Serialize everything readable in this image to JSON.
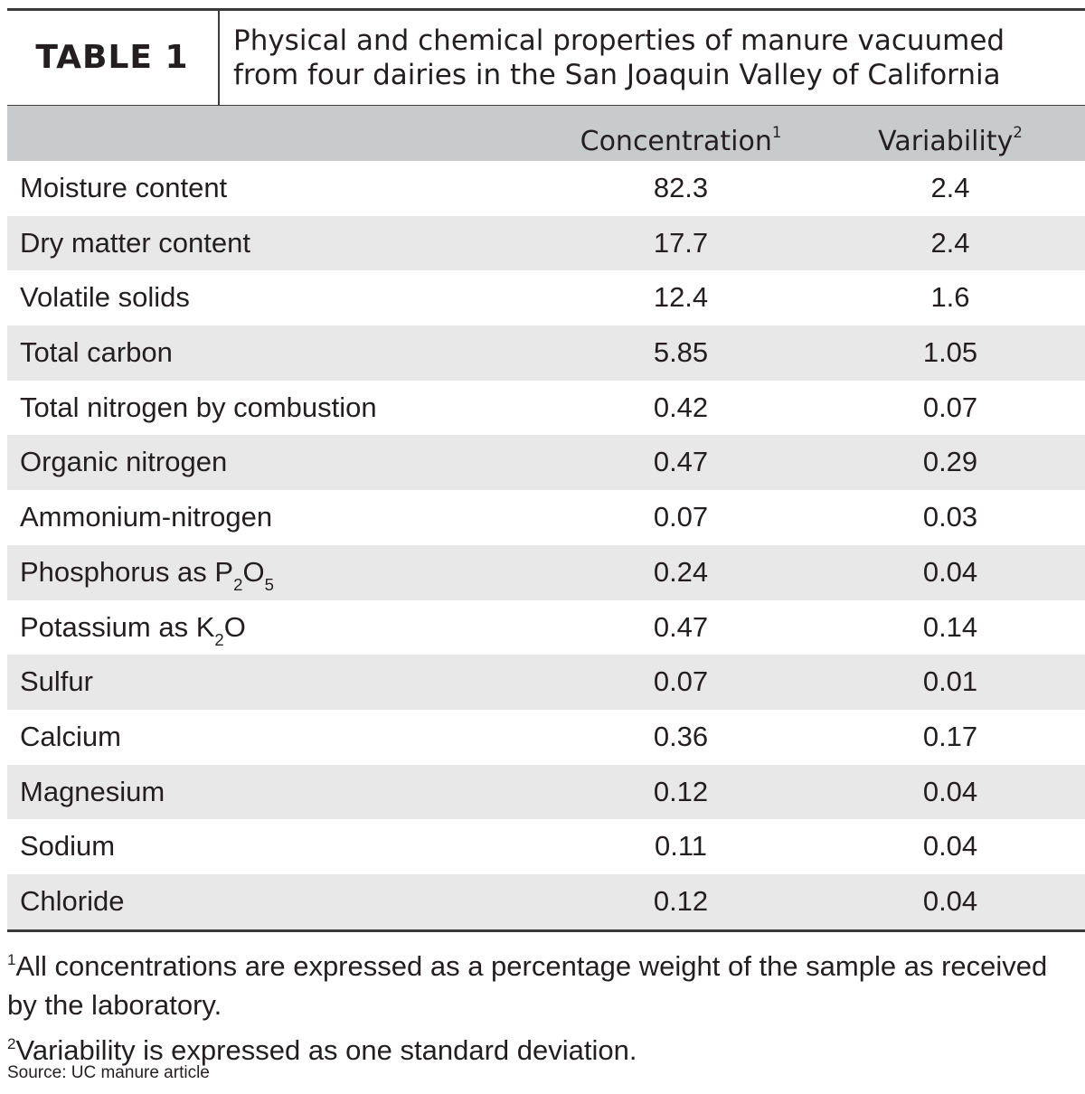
{
  "header": {
    "label": "TABLE 1",
    "title_lines": [
      "Physical and chemical properties of manure vacuumed",
      "from four dairies in the San Joaquin Valley of California"
    ]
  },
  "table": {
    "columns": [
      {
        "text": "Concentration",
        "sup": "1"
      },
      {
        "text": "Variability",
        "sup": "2"
      }
    ],
    "rows": [
      {
        "label": "Moisture content",
        "values": [
          82.3,
          2.4
        ]
      },
      {
        "label": "Dry matter content",
        "values": [
          17.7,
          2.4
        ]
      },
      {
        "label": "Volatile solids",
        "values": [
          12.4,
          1.6
        ]
      },
      {
        "label": "Total carbon",
        "values": [
          5.85,
          1.05
        ]
      },
      {
        "label": "Total nitrogen by combustion",
        "values": [
          0.42,
          0.07
        ]
      },
      {
        "label": "Organic nitrogen",
        "values": [
          0.47,
          0.29
        ]
      },
      {
        "label": "Ammonium-nitrogen",
        "values": [
          0.07,
          0.03
        ]
      },
      {
        "label": [
          {
            "t": "Phosphorus as P"
          },
          {
            "sub": "2"
          },
          {
            "t": "O"
          },
          {
            "sub": "5"
          }
        ],
        "values": [
          0.24,
          0.04
        ]
      },
      {
        "label": [
          {
            "t": "Potassium as K"
          },
          {
            "sub": "2"
          },
          {
            "t": "O"
          }
        ],
        "values": [
          0.47,
          0.14
        ]
      },
      {
        "label": "Sulfur",
        "values": [
          0.07,
          0.01
        ]
      },
      {
        "label": "Calcium",
        "values": [
          0.36,
          0.17
        ]
      },
      {
        "label": "Magnesium",
        "values": [
          0.12,
          0.04
        ]
      },
      {
        "label": "Sodium",
        "values": [
          0.11,
          0.04
        ]
      },
      {
        "label": "Chloride",
        "values": [
          0.12,
          0.04
        ]
      }
    ]
  },
  "footnotes": [
    {
      "mark": "1",
      "text": "All concentrations are expressed as a percentage weight of the sample as received by the laboratory."
    },
    {
      "mark": "2",
      "text": "Variability is expressed as one standard deviation."
    }
  ],
  "source": "Source: UC manure article"
}
